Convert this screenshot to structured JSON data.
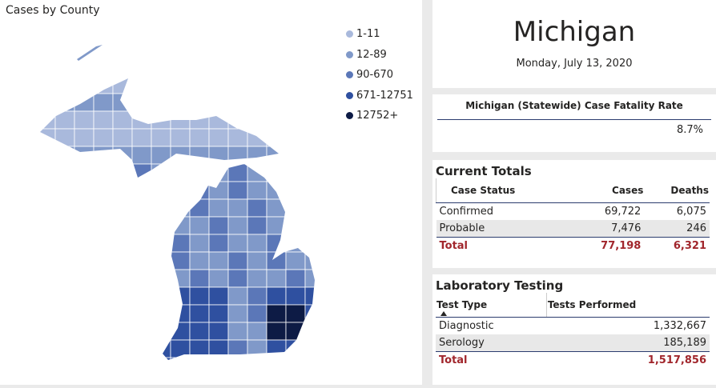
{
  "map_panel": {
    "title": "Cases by County",
    "legend": [
      "1-11",
      "12-89",
      "90-670",
      "671-12751",
      "12752+"
    ]
  },
  "header": {
    "title": "Michigan",
    "date": "Monday, July 13, 2020"
  },
  "fatality": {
    "title": "Michigan (Statewide) Case Fatality Rate",
    "value": "8.7%"
  },
  "current_totals": {
    "title": "Current Totals",
    "columns": [
      "Case Status",
      "Cases",
      "Deaths"
    ],
    "rows": [
      [
        "Confirmed",
        "69,722",
        "6,075"
      ],
      [
        "Probable",
        "7,476",
        "246"
      ]
    ],
    "total": [
      "Total",
      "77,198",
      "6,321"
    ]
  },
  "lab_testing": {
    "title": "Laboratory Testing",
    "columns": [
      "Test Type",
      "Tests Performed"
    ],
    "rows": [
      [
        "Diagnostic",
        "1,332,667"
      ],
      [
        "Serology",
        "185,189"
      ]
    ],
    "total": [
      "Total",
      "1,517,856"
    ]
  }
}
